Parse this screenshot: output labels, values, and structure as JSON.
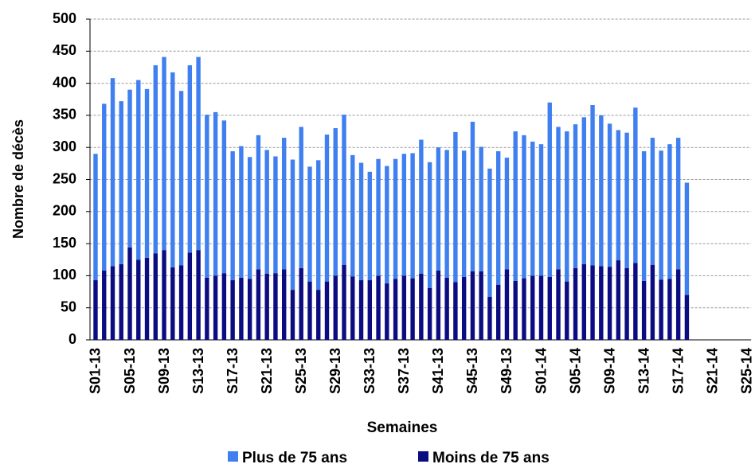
{
  "chart_data": {
    "type": "stacked_bar",
    "y_label": "Nombre de décès",
    "x_label": "Semaines",
    "categories": [
      "S01-13",
      null,
      null,
      null,
      "S05-13",
      null,
      null,
      null,
      "S09-13",
      null,
      null,
      null,
      "S13-13",
      null,
      null,
      null,
      "S17-13",
      null,
      null,
      null,
      "S21-13",
      null,
      null,
      null,
      "S25-13",
      null,
      null,
      null,
      "S29-13",
      null,
      null,
      null,
      "S33-13",
      null,
      null,
      null,
      "S37-13",
      null,
      null,
      null,
      "S41-13",
      null,
      null,
      null,
      "S45-13",
      null,
      null,
      null,
      "S49-13",
      null,
      null,
      null,
      "S01-14",
      null,
      null,
      null,
      "S05-14",
      null,
      null,
      null,
      "S09-14",
      null,
      null,
      null,
      "S13-14",
      null,
      null,
      null,
      "S17-14",
      null,
      null,
      null,
      "S21-14",
      null,
      null,
      null,
      "S25-14"
    ],
    "series": [
      {
        "name": "Plus de 75 ans",
        "color": "#3f7ff0",
        "values": [
          197,
          260,
          293,
          254,
          246,
          280,
          263,
          293,
          301,
          304,
          272,
          292,
          301,
          254,
          255,
          238,
          201,
          205,
          190,
          209,
          193,
          182,
          205,
          203,
          220,
          179,
          202,
          229,
          230,
          234,
          189,
          183,
          169,
          182,
          183,
          187,
          190,
          195,
          209,
          196,
          192,
          199,
          234,
          197,
          233,
          194,
          200,
          208,
          174,
          233,
          223,
          209,
          205,
          272,
          222,
          234,
          224,
          229,
          250,
          235,
          223,
          203,
          211,
          242,
          202,
          198,
          201,
          210,
          205,
          175,
          null,
          null,
          null,
          null,
          null,
          null,
          null
        ]
      },
      {
        "name": "Moins de 75 ans",
        "color": "#0c0c82",
        "values": [
          93,
          108,
          115,
          118,
          144,
          125,
          128,
          135,
          140,
          113,
          116,
          136,
          140,
          97,
          100,
          104,
          93,
          97,
          95,
          110,
          103,
          104,
          110,
          78,
          112,
          91,
          78,
          91,
          100,
          117,
          99,
          93,
          93,
          100,
          88,
          95,
          100,
          96,
          103,
          81,
          108,
          97,
          90,
          98,
          107,
          107,
          67,
          86,
          110,
          92,
          96,
          100,
          100,
          98,
          110,
          91,
          112,
          118,
          116,
          115,
          114,
          124,
          112,
          120,
          92,
          117,
          94,
          95,
          110,
          70,
          null,
          null,
          null,
          null,
          null,
          null,
          null
        ]
      }
    ],
    "ylim": [
      0,
      500
    ],
    "yticks": [
      0,
      50,
      100,
      150,
      200,
      250,
      300,
      350,
      400,
      450,
      500
    ],
    "grid": true
  }
}
